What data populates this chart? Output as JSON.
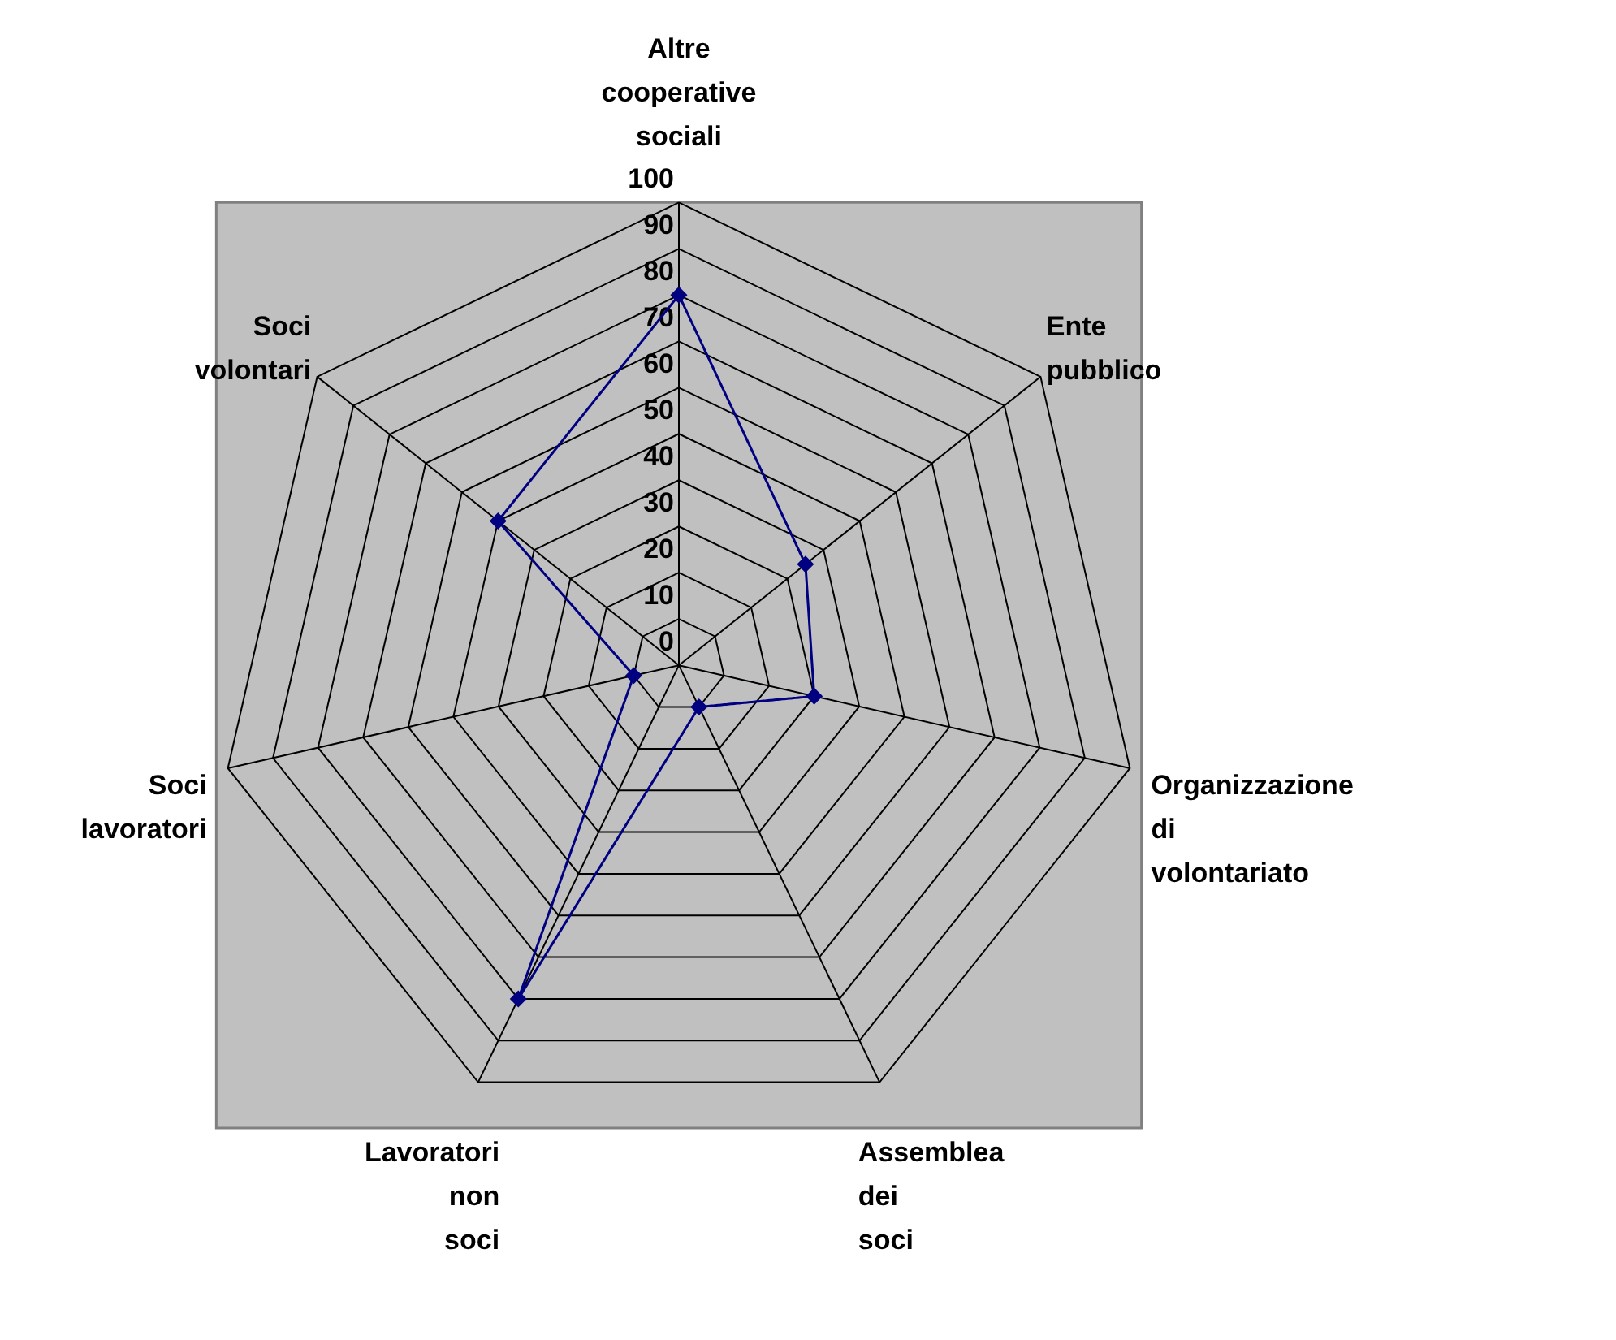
{
  "chart_data": {
    "type": "radar",
    "categories": [
      "Altre cooperative sociali",
      "Ente pubblico",
      "Organizzazione di volontariato",
      "Assemblea dei soci",
      "Lavoratori non soci",
      "Soci lavoratori",
      "Soci volontari"
    ],
    "series": [
      {
        "color": "#000080",
        "values": [
          80,
          35,
          30,
          10,
          80,
          10,
          50
        ]
      }
    ],
    "ylim": [
      0,
      100
    ],
    "yticks": [
      0,
      10,
      20,
      30,
      40,
      50,
      60,
      70,
      80,
      90,
      100
    ],
    "grid": true,
    "marker": "diamond",
    "line_style": "solid",
    "legend": false
  }
}
